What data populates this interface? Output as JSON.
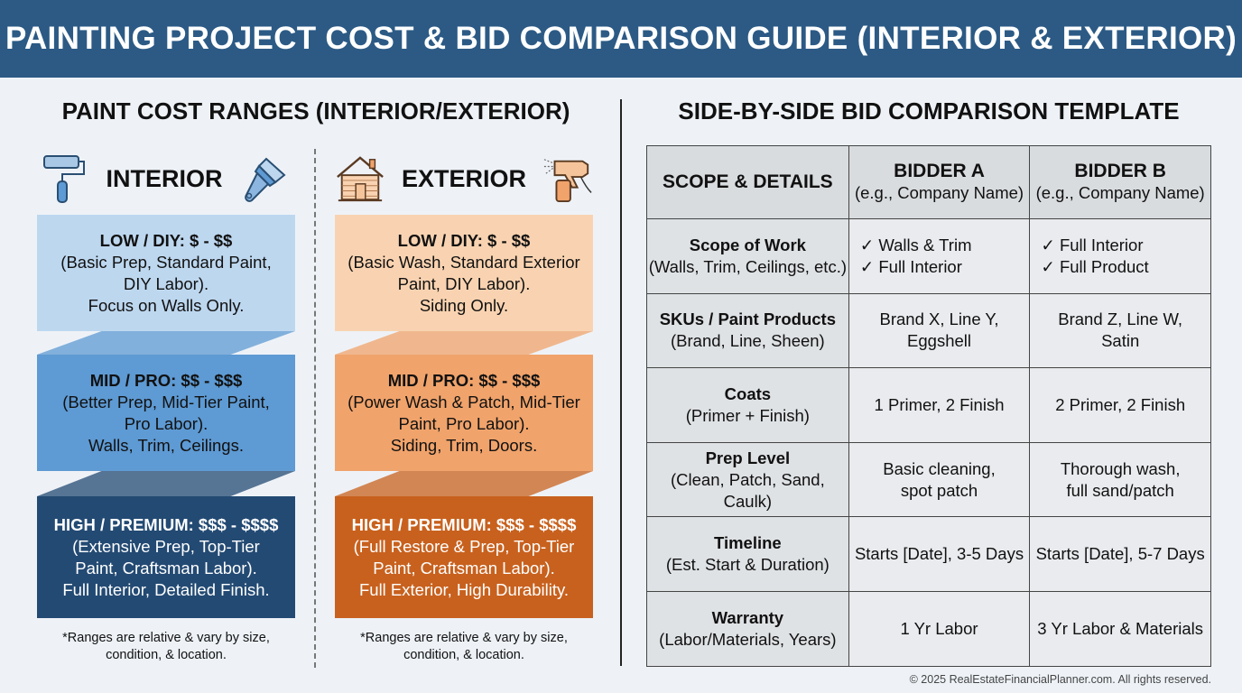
{
  "title": "PAINTING PROJECT COST & BID COMPARISON GUIDE (INTERIOR & EXTERIOR)",
  "left": {
    "heading": "PAINT COST RANGES (INTERIOR/EXTERIOR)",
    "interior": {
      "label": "INTERIOR",
      "icons": [
        "paint-roller-icon",
        "paint-brush-icon"
      ],
      "tiers": [
        {
          "title": "LOW / DIY: $ - $$",
          "lines": [
            "(Basic Prep, Standard Paint,",
            "DIY Labor).",
            "Focus on Walls Only."
          ]
        },
        {
          "title": "MID / PRO: $$ - $$$",
          "lines": [
            "(Better Prep, Mid-Tier Paint,",
            "Pro Labor).",
            "Walls, Trim, Ceilings."
          ]
        },
        {
          "title": "HIGH / PREMIUM: $$$ - $$$$",
          "lines": [
            "(Extensive Prep, Top-Tier",
            "Paint, Craftsman Labor).",
            "Full Interior, Detailed Finish."
          ]
        }
      ],
      "note": [
        "*Ranges are relative & vary by size,",
        "condition, & location."
      ]
    },
    "exterior": {
      "label": "EXTERIOR",
      "icons": [
        "house-icon",
        "spray-gun-icon"
      ],
      "tiers": [
        {
          "title": "LOW / DIY: $ - $$",
          "lines": [
            "(Basic Wash, Standard Exterior",
            "Paint, DIY Labor).",
            "Siding Only."
          ]
        },
        {
          "title": "MID / PRO: $$ - $$$",
          "lines": [
            "(Power Wash & Patch, Mid-Tier",
            "Paint, Pro Labor).",
            "Siding, Trim, Doors."
          ]
        },
        {
          "title": "HIGH / PREMIUM: $$$ - $$$$",
          "lines": [
            "(Full Restore & Prep, Top-Tier",
            "Paint, Craftsman Labor).",
            "Full Exterior, High Durability."
          ]
        }
      ],
      "note": [
        "*Ranges are relative & vary by size,",
        "condition, & location."
      ]
    },
    "colors": {
      "int": [
        "#bdd7ef",
        "#5e9ad3",
        "#234a73"
      ],
      "ext": [
        "#f9d3b1",
        "#f0a36b",
        "#c8611e"
      ]
    }
  },
  "right": {
    "heading": "SIDE-BY-SIDE BID COMPARISON TEMPLATE",
    "headers": [
      {
        "title": "SCOPE & DETAILS",
        "sub": ""
      },
      {
        "title": "BIDDER A",
        "sub": "(e.g., Company Name)"
      },
      {
        "title": "BIDDER B",
        "sub": "(e.g., Company Name)"
      }
    ],
    "rows": [
      {
        "label": "Scope of Work",
        "sub": "(Walls, Trim, Ceilings, etc.)",
        "a": [
          "✓ Walls & Trim",
          "✓ Full Interior"
        ],
        "b": [
          "✓ Full Interior",
          "✓ Full Product"
        ]
      },
      {
        "label": "SKUs / Paint Products",
        "sub": "(Brand, Line, Sheen)",
        "a": [
          "Brand X, Line Y,",
          "Eggshell"
        ],
        "b": [
          "Brand Z, Line W,",
          "Satin"
        ]
      },
      {
        "label": "Coats",
        "sub": "(Primer + Finish)",
        "a": [
          "1 Primer, 2 Finish"
        ],
        "b": [
          "2 Primer, 2 Finish"
        ]
      },
      {
        "label": "Prep Level",
        "sub": "(Clean, Patch, Sand, Caulk)",
        "a": [
          "Basic cleaning,",
          "spot patch"
        ],
        "b": [
          "Thorough wash,",
          "full sand/patch"
        ]
      },
      {
        "label": "Timeline",
        "sub": "(Est. Start & Duration)",
        "a": [
          "Starts [Date], 3-5 Days"
        ],
        "b": [
          "Starts [Date], 5-7 Days"
        ]
      },
      {
        "label": "Warranty",
        "sub": "(Labor/Materials, Years)",
        "a": [
          "1 Yr Labor"
        ],
        "b": [
          "3 Yr Labor & Materials"
        ]
      }
    ]
  },
  "footer": "© 2025 RealEstateFinancialPlanner.com. All rights reserved."
}
